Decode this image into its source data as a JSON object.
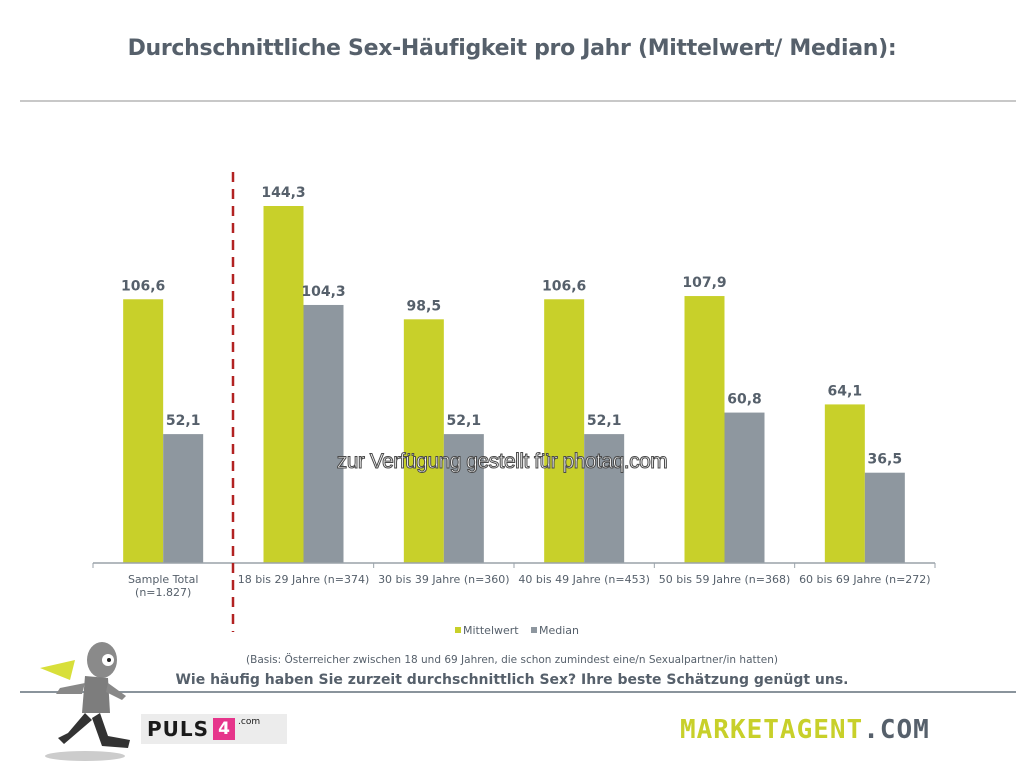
{
  "title": "Durchschnittliche Sex-Häufigkeit pro Jahr (Mittelwert/ Median):",
  "watermark": "zur Verfügung gestellt für photaq.com",
  "basis_note": "(Basis: Österreicher zwischen 18 und 69 Jahren, die schon zumindest eine/n Sexualpartner/in hatten)",
  "question": "Wie häufig haben Sie zurzeit durchschnittlich Sex? Ihre beste Schätzung genügt uns.",
  "logos": {
    "puls_text": "PULS",
    "puls_box": "4",
    "puls_com": ".com",
    "marketagent_main": "MARKETAGENT",
    "marketagent_com": ".COM"
  },
  "colors": {
    "mittelwert": "#c8d02a",
    "median": "#8e979f",
    "text": "#56606b",
    "divider": "#b22222"
  },
  "chart_data": {
    "type": "bar",
    "title": "Durchschnittliche Sex-Häufigkeit pro Jahr (Mittelwert/ Median):",
    "xlabel": "",
    "ylabel": "",
    "ylim": [
      0,
      150
    ],
    "grid": false,
    "legend_position": "bottom",
    "categories": [
      [
        "Sample Total",
        "(n=1.827)"
      ],
      [
        "18 bis 29 Jahre (n=374)"
      ],
      [
        "30 bis 39 Jahre (n=360)"
      ],
      [
        "40 bis 49 Jahre (n=453)"
      ],
      [
        "50 bis 59 Jahre (n=368)"
      ],
      [
        "60 bis 69 Jahre (n=272)"
      ]
    ],
    "series": [
      {
        "name": "Mittelwert",
        "values": [
          106.6,
          144.3,
          98.5,
          106.6,
          107.9,
          64.1
        ],
        "labels": [
          "106,6",
          "144,3",
          "98,5",
          "106,6",
          "107,9",
          "64,1"
        ]
      },
      {
        "name": "Median",
        "values": [
          52.1,
          104.3,
          52.1,
          52.1,
          60.8,
          36.5
        ],
        "labels": [
          "52,1",
          "104,3",
          "52,1",
          "52,1",
          "60,8",
          "36,5"
        ]
      }
    ],
    "annotations": [
      "dashed vertical divider between 'Sample Total' and age groups"
    ]
  }
}
